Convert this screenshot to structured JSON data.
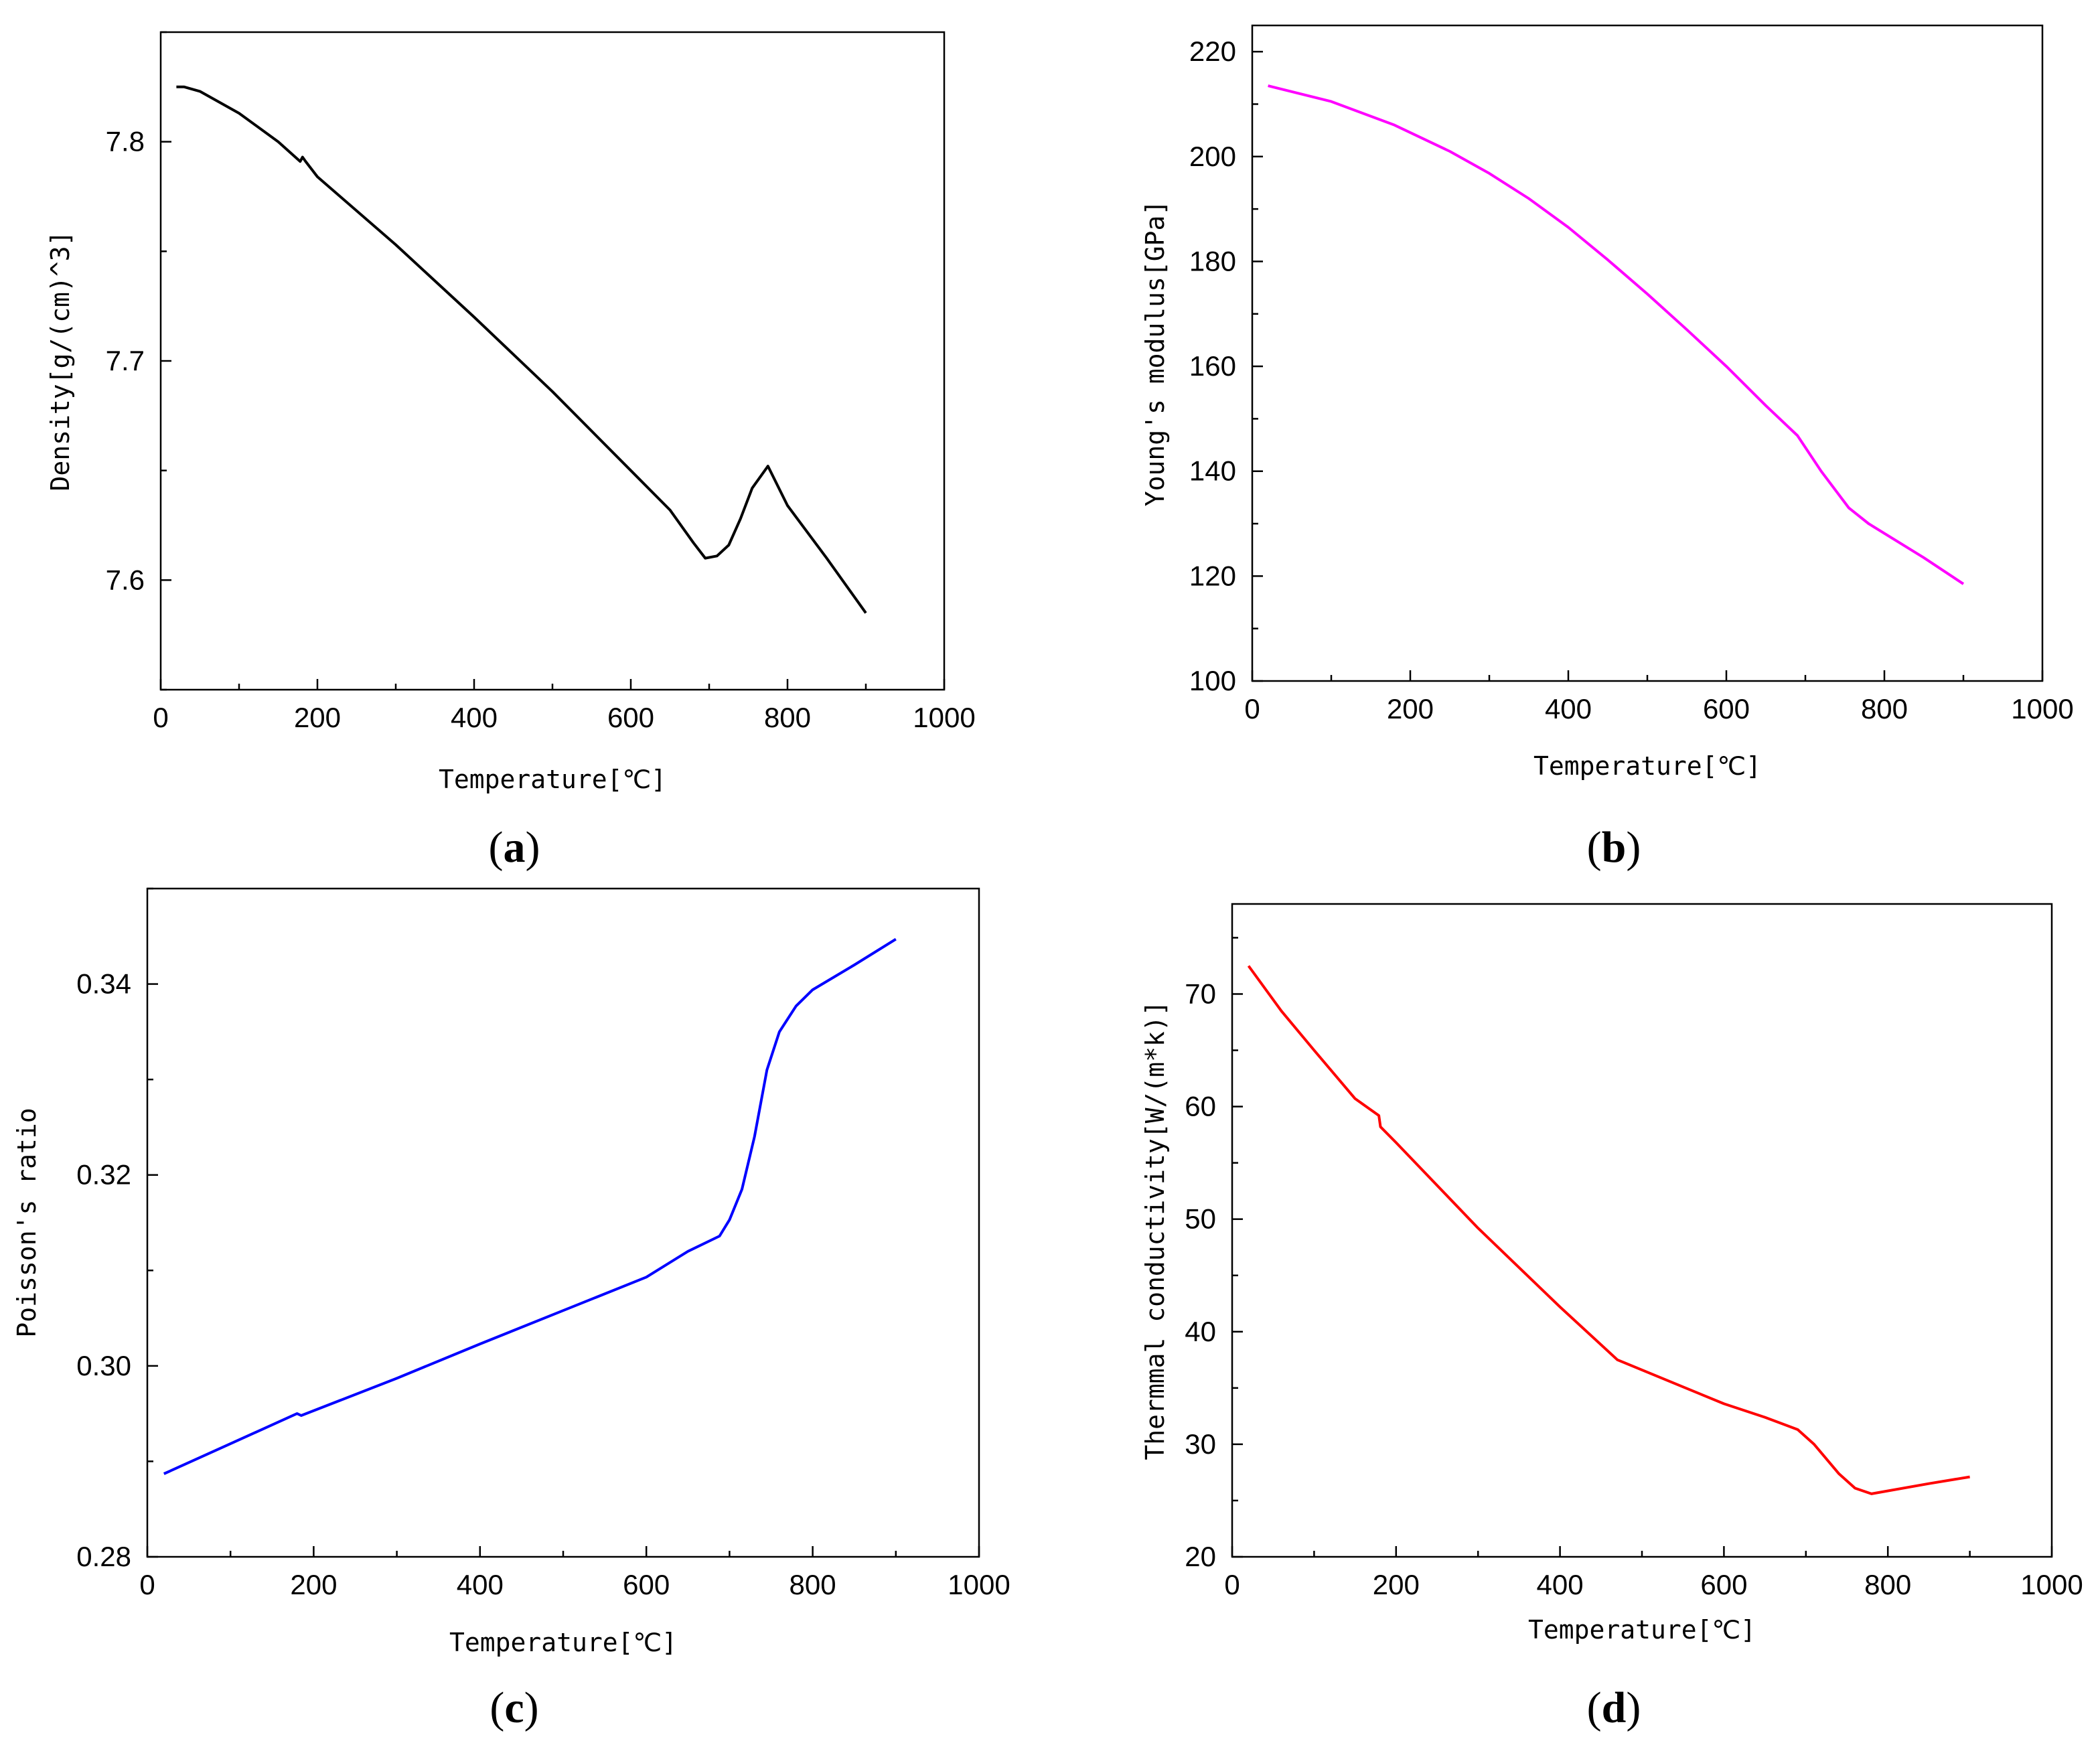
{
  "chart_data": [
    {
      "id": "a",
      "type": "line",
      "panel_label": "(a)",
      "panel_letter": "a",
      "xlabel": "Temperature[℃]",
      "ylabel": "Density[g/(cm)^3]",
      "xlim": [
        0,
        1000
      ],
      "ylim": [
        7.55,
        7.85
      ],
      "xticks": [
        0,
        200,
        400,
        600,
        800,
        1000
      ],
      "xtick_labels": [
        "0",
        "200",
        "400",
        "600",
        "800",
        "1000"
      ],
      "yticks": [
        7.6,
        7.7,
        7.8
      ],
      "ytick_labels": [
        "7.6",
        "7.7",
        "7.8"
      ],
      "color": "#000000",
      "series": [
        {
          "name": "Density",
          "x": [
            20,
            30,
            50,
            100,
            150,
            178,
            181,
            185,
            200,
            300,
            400,
            500,
            600,
            650,
            680,
            695,
            710,
            725,
            740,
            755,
            775,
            800,
            850,
            900
          ],
          "y": [
            7.825,
            7.825,
            7.823,
            7.813,
            7.8,
            7.791,
            7.793,
            7.791,
            7.784,
            7.753,
            7.72,
            7.686,
            7.65,
            7.632,
            7.617,
            7.61,
            7.611,
            7.616,
            7.628,
            7.642,
            7.652,
            7.634,
            7.61,
            7.585
          ]
        }
      ]
    },
    {
      "id": "b",
      "type": "line",
      "panel_label": "(b)",
      "panel_letter": "b",
      "xlabel": "Temperature[℃]",
      "ylabel": "Young's modulus[GPa]",
      "xlim": [
        0,
        1000
      ],
      "ylim": [
        100,
        225
      ],
      "xticks": [
        0,
        200,
        400,
        600,
        800,
        1000
      ],
      "xtick_labels": [
        "0",
        "200",
        "400",
        "600",
        "800",
        "1000"
      ],
      "yticks": [
        100,
        120,
        140,
        160,
        180,
        200,
        220
      ],
      "ytick_labels": [
        "100",
        "120",
        "140",
        "160",
        "180",
        "200",
        "220"
      ],
      "color": "#ff00ff",
      "series": [
        {
          "name": "Young's modulus",
          "x": [
            20,
            100,
            180,
            250,
            300,
            350,
            400,
            450,
            500,
            550,
            600,
            650,
            690,
            720,
            755,
            780,
            850,
            900
          ],
          "y": [
            213.5,
            210.5,
            206.0,
            201.0,
            196.8,
            192.0,
            186.5,
            180.3,
            173.8,
            167.0,
            160.0,
            152.5,
            146.8,
            140.0,
            133.0,
            130.0,
            123.5,
            118.5
          ]
        }
      ]
    },
    {
      "id": "c",
      "type": "line",
      "panel_label": "(c)",
      "panel_letter": "c",
      "xlabel": "Temperature[℃]",
      "ylabel": "Poisson's ratio",
      "xlim": [
        0,
        1000
      ],
      "ylim": [
        0.28,
        0.35
      ],
      "xticks": [
        0,
        200,
        400,
        600,
        800,
        1000
      ],
      "xtick_labels": [
        "0",
        "200",
        "400",
        "600",
        "800",
        "1000"
      ],
      "yticks": [
        0.28,
        0.3,
        0.32,
        0.34
      ],
      "ytick_labels": [
        "0.28",
        "0.30",
        "0.32",
        "0.34"
      ],
      "color": "#0000ff",
      "series": [
        {
          "name": "Poisson's ratio",
          "x": [
            20,
            180,
            185,
            300,
            400,
            500,
            600,
            650,
            688,
            700,
            715,
            730,
            745,
            760,
            780,
            800,
            850,
            900
          ],
          "y": [
            0.2887,
            0.295,
            0.2948,
            0.2987,
            0.3023,
            0.3058,
            0.3093,
            0.312,
            0.3136,
            0.3153,
            0.3185,
            0.324,
            0.331,
            0.335,
            0.3377,
            0.3394,
            0.342,
            0.3447
          ]
        }
      ]
    },
    {
      "id": "d",
      "type": "line",
      "panel_label": "(d)",
      "panel_letter": "d",
      "xlabel": "Temperature[℃]",
      "ylabel": "Thermmal conductivity[W/(m*k)]",
      "xlim": [
        0,
        1000
      ],
      "ylim": [
        20,
        78
      ],
      "xticks": [
        0,
        200,
        400,
        600,
        800,
        1000
      ],
      "xtick_labels": [
        "0",
        "200",
        "400",
        "600",
        "800",
        "1000"
      ],
      "yticks": [
        20,
        30,
        40,
        50,
        60,
        70
      ],
      "ytick_labels": [
        "20",
        "30",
        "40",
        "50",
        "60",
        "70"
      ],
      "color": "#ff0000",
      "series": [
        {
          "name": "Thermal conductivity",
          "x": [
            20,
            60,
            100,
            150,
            179,
            181,
            200,
            300,
            400,
            470,
            550,
            600,
            650,
            690,
            710,
            740,
            760,
            780,
            850,
            900
          ],
          "y": [
            72.5,
            68.5,
            65.0,
            60.7,
            59.2,
            58.2,
            56.8,
            49.2,
            42.2,
            37.5,
            35.1,
            33.6,
            32.4,
            31.3,
            30.0,
            27.4,
            26.1,
            25.6,
            26.5,
            27.1
          ]
        }
      ]
    }
  ]
}
